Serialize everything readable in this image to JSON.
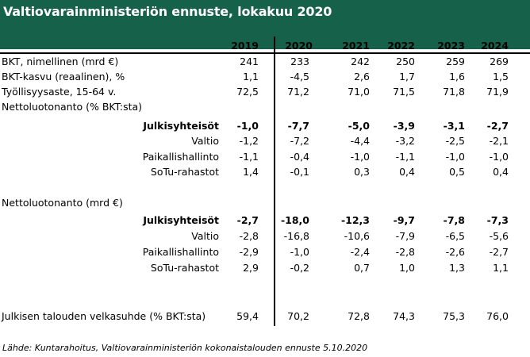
{
  "title": "Valtiovarainministeriön ennuste, lokakuu 2020",
  "years": [
    "2019",
    "2020",
    "2021",
    "2022",
    "2023",
    "2024"
  ],
  "rows": [
    {
      "label": "BKT, nimellinen (mrd €)",
      "values": [
        "241",
        "233",
        "242",
        "250",
        "259",
        "269"
      ]
    },
    {
      "label": "BKT-kasvu (reaalinen), %",
      "values": [
        "1,1",
        "-4,5",
        "2,6",
        "1,7",
        "1,6",
        "1,5"
      ]
    },
    {
      "label": "Työllisyysaste, 15-64 v.",
      "values": [
        "72,5",
        "71,2",
        "71,0",
        "71,5",
        "71,8",
        "71,9"
      ]
    },
    {
      "label": "Nettoluotonanto (% BKT:sta)",
      "values": [
        "",
        "",
        "",
        "",
        "",
        ""
      ]
    },
    {
      "label": "Julkisyhteisöt",
      "values": [
        "-1,0",
        "-7,7",
        "-5,0",
        "-3,9",
        "-3,1",
        "-2,7"
      ]
    },
    {
      "label": "Valtio",
      "values": [
        "-1,2",
        "-7,2",
        "-4,4",
        "-3,2",
        "-2,5",
        "-2,1"
      ]
    },
    {
      "label": "Paikallishallinto",
      "values": [
        "-1,1",
        "-0,4",
        "-1,0",
        "-1,1",
        "-1,0",
        "-1,0"
      ]
    },
    {
      "label": "SoTu-rahastot",
      "values": [
        "1,4",
        "-0,1",
        "0,3",
        "0,4",
        "0,5",
        "0,4"
      ]
    },
    {
      "label": "Nettoluotonanto (mrd €)",
      "values": [
        "",
        "",
        "",
        "",
        "",
        ""
      ]
    },
    {
      "label": "Julkisyhteisöt",
      "values": [
        "-2,7",
        "-18,0",
        "-12,3",
        "-9,7",
        "-7,8",
        "-7,3"
      ]
    },
    {
      "label": "Valtio",
      "values": [
        "-2,8",
        "-16,8",
        "-10,6",
        "-7,9",
        "-6,5",
        "-5,6"
      ]
    },
    {
      "label": "Paikallishallinto",
      "values": [
        "-2,9",
        "-1,0",
        "-2,4",
        "-2,8",
        "-2,6",
        "-2,7"
      ]
    },
    {
      "label": "SoTu-rahastot",
      "values": [
        "2,9",
        "-0,2",
        "0,7",
        "1,0",
        "1,3",
        "1,1"
      ]
    },
    {
      "label": "Julkisen talouden velkasuhde (% BKT:sta)",
      "values": [
        "59,4",
        "70,2",
        "72,8",
        "74,3",
        "75,3",
        "76,0"
      ]
    }
  ],
  "source": "Lähde: Kuntarahoitus, Valtiovarainministeriön kokonaistalouden ennuste 5.10.2020",
  "colors": {
    "header_bg": "#16614a",
    "header_text": "#ffffff"
  }
}
